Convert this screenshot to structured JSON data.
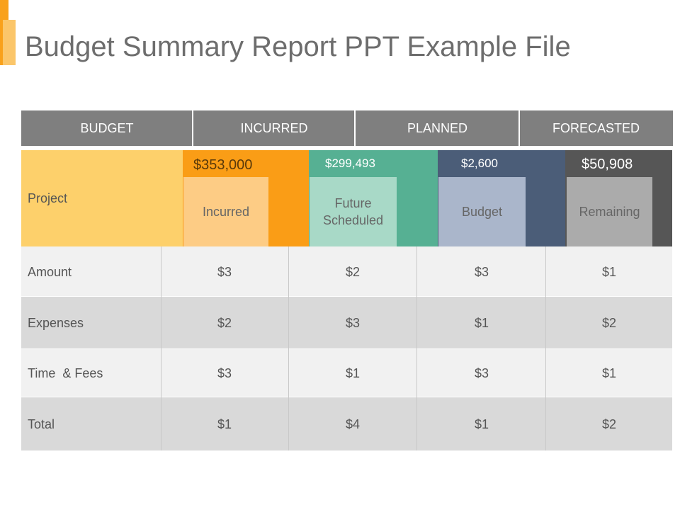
{
  "title": "Budget Summary Report PPT Example File",
  "header": [
    "BUDGET",
    "INCURRED",
    "PLANNED",
    "FORECASTED"
  ],
  "project_label": "Project",
  "columns": [
    {
      "amount": "$353,000",
      "label": "Incurred"
    },
    {
      "amount": "$299,493",
      "label": "Future Scheduled"
    },
    {
      "amount": "$2,600",
      "label": "Budget"
    },
    {
      "amount": "$50,908",
      "label": "Remaining"
    }
  ],
  "rows": [
    {
      "label": "Amount",
      "values": [
        "$3",
        "$2",
        "$3",
        "$1"
      ]
    },
    {
      "label": "Expenses",
      "values": [
        "$2",
        "$3",
        "$1",
        "$2"
      ]
    },
    {
      "label": "Time  & Fees",
      "values": [
        "$3",
        "$1",
        "$3",
        "$1"
      ]
    },
    {
      "label": "Total",
      "values": [
        "$1",
        "$4",
        "$1",
        "$2"
      ]
    }
  ],
  "colors": {
    "accent_dark": "#f9a11b",
    "accent_light": "#fbc66a",
    "header_bg": "#7f7f7f",
    "project_bg": "#fdd06b",
    "orange": "#fa9d16",
    "orange_light": "#fdcc85",
    "teal": "#56b093",
    "teal_light": "#a8d9c7",
    "navy": "#4b5d78",
    "navy_light": "#aab6cb",
    "dark": "#565656",
    "dark_light": "#ababab",
    "row_light": "#f1f1f1",
    "row_dark": "#d9d9d9"
  }
}
